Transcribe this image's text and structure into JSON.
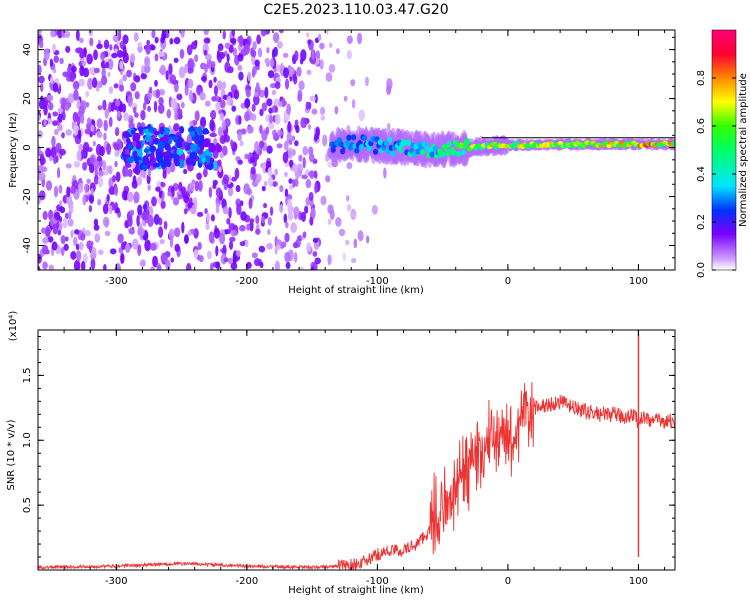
{
  "figure_title": "C2E5.2023.110.03.47.G20",
  "chart_data": [
    {
      "type": "heatmap",
      "xlabel": "Height of straight line (km)",
      "ylabel": "Frequency (Hz)",
      "xlim": [
        -360,
        128
      ],
      "ylim": [
        -50,
        48
      ],
      "xticks": [
        -300,
        -200,
        -100,
        0,
        100
      ],
      "yticks": [
        -40,
        -20,
        0,
        20,
        40
      ],
      "xtick_labels": [
        "-300",
        "-200",
        "-100",
        "0",
        "100"
      ],
      "ytick_labels": [
        "-40",
        "-20",
        "0",
        "20",
        "40"
      ],
      "colorbar": {
        "label": "Normalized spectral amplitude",
        "range": [
          0,
          1
        ],
        "ticks": [
          0.0,
          0.2,
          0.4,
          0.6,
          0.8
        ],
        "tick_labels": [
          "0.0",
          "0.2",
          "0.4",
          "0.6",
          "0.8"
        ],
        "colors": [
          "#ffffff",
          "#cc99ff",
          "#7a00ff",
          "#0033ff",
          "#00e5ff",
          "#00ff66",
          "#33ff00",
          "#ffff00",
          "#ff8800",
          "#ff0033",
          "#ff0077"
        ]
      },
      "signal_band": [
        {
          "x": -120,
          "f": 1.5,
          "amp": 0.3
        },
        {
          "x": -100,
          "f": 1.0,
          "amp": 0.35
        },
        {
          "x": -80,
          "f": 0.0,
          "amp": 0.4
        },
        {
          "x": -60,
          "f": -1.0,
          "amp": 0.45
        },
        {
          "x": -40,
          "f": -0.5,
          "amp": 0.55
        },
        {
          "x": -20,
          "f": 0.5,
          "amp": 0.7
        },
        {
          "x": 0,
          "f": 1.0,
          "amp": 0.75
        },
        {
          "x": 20,
          "f": 1.0,
          "amp": 0.72
        },
        {
          "x": 40,
          "f": 1.2,
          "amp": 0.7
        },
        {
          "x": 60,
          "f": 1.3,
          "amp": 0.75
        },
        {
          "x": 80,
          "f": 1.3,
          "amp": 0.85
        },
        {
          "x": 100,
          "f": 1.3,
          "amp": 0.8
        },
        {
          "x": 120,
          "f": 1.3,
          "amp": 0.8
        }
      ],
      "reference_line_freq": 4
    },
    {
      "type": "line",
      "xlabel": "Height of straight line (km)",
      "ylabel": "SNR (10 * v/v)",
      "y_multiplier_label": "(x10⁴)",
      "xlim": [
        -360,
        128
      ],
      "ylim": [
        0,
        1.85
      ],
      "xticks": [
        -300,
        -200,
        -100,
        0,
        100
      ],
      "yticks": [
        0.5,
        1.0,
        1.5
      ],
      "xtick_labels": [
        "-300",
        "-200",
        "-100",
        "0",
        "100"
      ],
      "ytick_labels": [
        "0.5",
        "1.0",
        "1.5"
      ],
      "color": "#ee3333",
      "series": [
        {
          "x": [
            -360,
            -300,
            -250,
            -200,
            -150,
            -130,
            -120,
            -110,
            -100,
            -90,
            -80,
            -70,
            -60,
            -50,
            -40,
            -30,
            -20,
            -10,
            0,
            10,
            20,
            30,
            40,
            50,
            60,
            70,
            80,
            90,
            95,
            100,
            105,
            110,
            120,
            128
          ],
          "y": [
            0.02,
            0.03,
            0.05,
            0.03,
            0.02,
            0.03,
            0.04,
            0.06,
            0.12,
            0.15,
            0.15,
            0.2,
            0.3,
            0.45,
            0.6,
            0.8,
            0.95,
            1.05,
            1.0,
            1.15,
            1.25,
            1.27,
            1.3,
            1.25,
            1.22,
            1.2,
            1.2,
            1.18,
            1.2,
            1.15,
            1.18,
            1.15,
            1.15,
            1.15
          ]
        }
      ],
      "annotations": [
        {
          "x": 100,
          "y_min": 0.1,
          "y_max": 1.85,
          "note_value": "spike"
        }
      ]
    }
  ]
}
